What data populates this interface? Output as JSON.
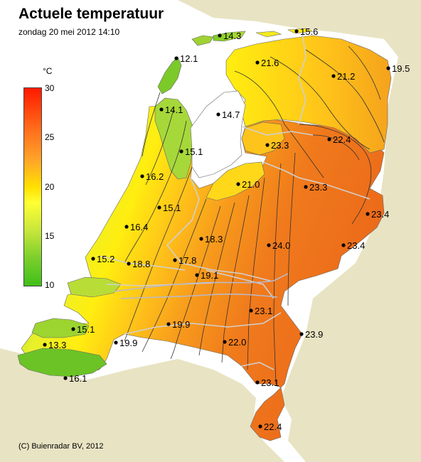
{
  "title": "Actuele temperatuur",
  "subtitle": "zondag 20 mei 2012 14:10",
  "copyright": "(C) Buienradar BV, 2012",
  "legend": {
    "unit": "°C",
    "ticks": [
      "30",
      "25",
      "20",
      "15",
      "10"
    ],
    "min": 10,
    "max": 30
  },
  "colors": {
    "sea": "#ffffff",
    "land_outside": "#e8e3c3",
    "border_lines": "#c8c8c8",
    "isotherm": "#333333"
  },
  "stations": [
    {
      "value": "14.3"
    },
    {
      "value": "15.6"
    },
    {
      "value": "12.1"
    },
    {
      "value": "21.6"
    },
    {
      "value": "19.5"
    },
    {
      "value": "21.2"
    },
    {
      "value": "14.1"
    },
    {
      "value": "14.7"
    },
    {
      "value": "22.4"
    },
    {
      "value": "23.3"
    },
    {
      "value": "15.1"
    },
    {
      "value": "16.2"
    },
    {
      "value": "21.0"
    },
    {
      "value": "23.3"
    },
    {
      "value": "15.1"
    },
    {
      "value": "23.4"
    },
    {
      "value": "16.4"
    },
    {
      "value": "18.3"
    },
    {
      "value": "24.0"
    },
    {
      "value": "23.4"
    },
    {
      "value": "15.2"
    },
    {
      "value": "18.8"
    },
    {
      "value": "17.8"
    },
    {
      "value": "19.1"
    },
    {
      "value": "23.1"
    },
    {
      "value": "15.1"
    },
    {
      "value": "19.9"
    },
    {
      "value": "23.9"
    },
    {
      "value": "13.3"
    },
    {
      "value": "19.9"
    },
    {
      "value": "22.0"
    },
    {
      "value": "16.1"
    },
    {
      "value": "23.1"
    },
    {
      "value": "22.4"
    }
  ]
}
